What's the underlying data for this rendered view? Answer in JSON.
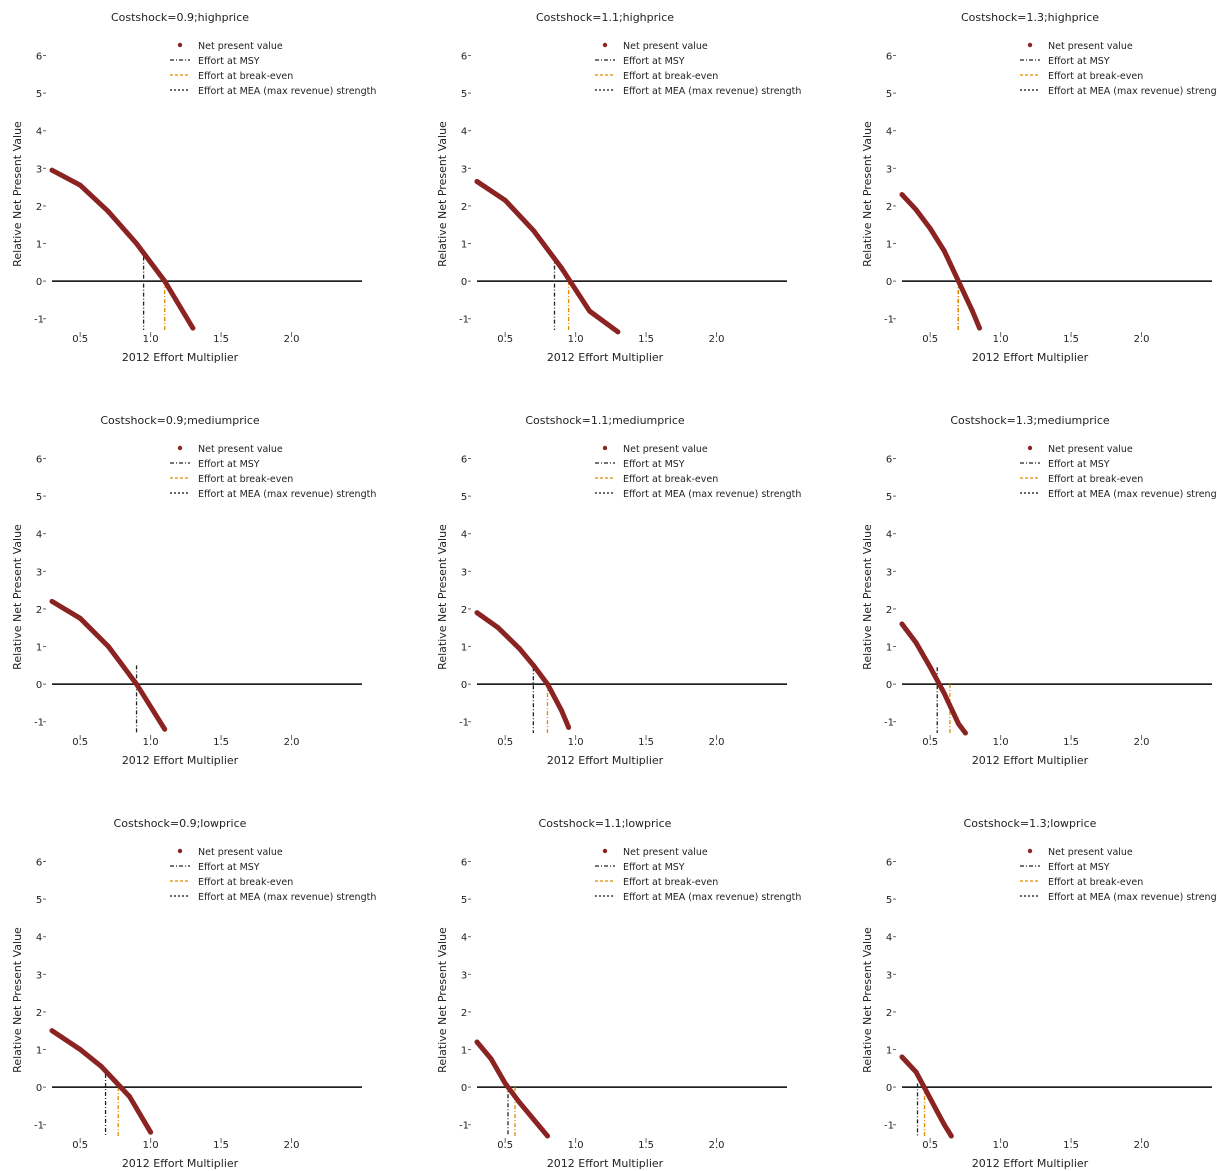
{
  "colors": {
    "npv": "#8b2323",
    "msy": "#222222",
    "breakeven": "#e08a00",
    "max_revenue": "#111111",
    "zero_line": "#000000"
  },
  "legend_labels": [
    "Net present value",
    "Effort at MSY",
    "Effort at break-even",
    "Effort at MEA (max revenue) strength"
  ],
  "chart_data": [
    {
      "type": "line",
      "title": "Costshock=0.9;highprice",
      "xlabel": "2012 Effort Multiplier",
      "ylabel": "Relative Net Present Value",
      "xlim": [
        0.3,
        2.5
      ],
      "ylim": [
        -1.3,
        6.2
      ],
      "x_ticks": [
        0.5,
        1.0,
        1.5,
        2.0
      ],
      "x_tick_labels": [
        "0.5",
        "1.0",
        "1.5",
        "2.0"
      ],
      "y_ticks": [
        -1,
        0,
        1,
        2,
        3,
        4,
        5,
        6
      ],
      "y_tick_labels": [
        "-1",
        "0",
        "1",
        "2",
        "3",
        "4",
        "5",
        "6"
      ],
      "series": [
        {
          "x": [
            0.3,
            0.5,
            0.7,
            0.9,
            1.1,
            1.3
          ],
          "values": [
            2.95,
            2.55,
            1.85,
            1.0,
            0.0,
            -1.25
          ]
        }
      ],
      "vlines": [
        {
          "kind": "msy",
          "x": 0.95,
          "y_top": 0.65
        },
        {
          "kind": "breakeven",
          "x": 1.1,
          "y_top": 0.0
        }
      ]
    },
    {
      "type": "line",
      "title": "Costshock=1.1;highprice",
      "xlabel": "2012 Effort Multiplier",
      "ylabel": "Relative Net Present Value",
      "xlim": [
        0.3,
        2.5
      ],
      "ylim": [
        -1.3,
        6.2
      ],
      "x_ticks": [
        0.5,
        1.0,
        1.5,
        2.0
      ],
      "x_tick_labels": [
        "0.5",
        "1.0",
        "1.5",
        "2.0"
      ],
      "y_ticks": [
        -1,
        0,
        1,
        2,
        3,
        4,
        5,
        6
      ],
      "y_tick_labels": [
        "-1",
        "0",
        "1",
        "2",
        "3",
        "4",
        "5",
        "6"
      ],
      "series": [
        {
          "x": [
            0.3,
            0.5,
            0.7,
            0.9,
            1.1,
            1.3
          ],
          "values": [
            2.65,
            2.15,
            1.35,
            0.35,
            -0.8,
            -1.35
          ]
        }
      ],
      "vlines": [
        {
          "kind": "msy",
          "x": 0.85,
          "y_top": 0.65
        },
        {
          "kind": "breakeven",
          "x": 0.95,
          "y_top": 0.0
        }
      ]
    },
    {
      "type": "line",
      "title": "Costshock=1.3;highprice",
      "xlabel": "2012 Effort Multiplier",
      "ylabel": "Relative Net Present Value",
      "xlim": [
        0.3,
        2.5
      ],
      "ylim": [
        -1.3,
        6.2
      ],
      "x_ticks": [
        0.5,
        1.0,
        1.5,
        2.0
      ],
      "x_tick_labels": [
        "0.5",
        "1.0",
        "1.5",
        "2.0"
      ],
      "y_ticks": [
        -1,
        0,
        1,
        2,
        3,
        4,
        5,
        6
      ],
      "y_tick_labels": [
        "-1",
        "0",
        "1",
        "2",
        "3",
        "4",
        "5",
        "6"
      ],
      "series": [
        {
          "x": [
            0.3,
            0.4,
            0.5,
            0.6,
            0.7,
            0.8,
            0.85
          ],
          "values": [
            2.3,
            1.9,
            1.4,
            0.8,
            0.0,
            -0.8,
            -1.25
          ]
        }
      ],
      "vlines": [
        {
          "kind": "msy",
          "x": 0.7,
          "y_top": 0.0
        },
        {
          "kind": "breakeven",
          "x": 0.7,
          "y_top": 0.0
        }
      ]
    },
    {
      "type": "line",
      "title": "Costshock=0.9;mediumprice",
      "xlabel": "2012 Effort Multiplier",
      "ylabel": "Relative Net Present Value",
      "xlim": [
        0.3,
        2.5
      ],
      "ylim": [
        -1.3,
        6.2
      ],
      "x_ticks": [
        0.5,
        1.0,
        1.5,
        2.0
      ],
      "x_tick_labels": [
        "0.5",
        "1.0",
        "1.5",
        "2.0"
      ],
      "y_ticks": [
        -1,
        0,
        1,
        2,
        3,
        4,
        5,
        6
      ],
      "y_tick_labels": [
        "-1",
        "0",
        "1",
        "2",
        "3",
        "4",
        "5",
        "6"
      ],
      "series": [
        {
          "x": [
            0.3,
            0.5,
            0.7,
            0.9,
            1.1
          ],
          "values": [
            2.2,
            1.75,
            1.0,
            0.0,
            -1.2
          ]
        }
      ],
      "vlines": [
        {
          "kind": "msy",
          "x": 0.9,
          "y_top": 0.5
        }
      ]
    },
    {
      "type": "line",
      "title": "Costshock=1.1;mediumprice",
      "xlabel": "2012 Effort Multiplier",
      "ylabel": "Relative Net Present Value",
      "xlim": [
        0.3,
        2.5
      ],
      "ylim": [
        -1.3,
        6.2
      ],
      "x_ticks": [
        0.5,
        1.0,
        1.5,
        2.0
      ],
      "x_tick_labels": [
        "0.5",
        "1.0",
        "1.5",
        "2.0"
      ],
      "y_ticks": [
        -1,
        0,
        1,
        2,
        3,
        4,
        5,
        6
      ],
      "y_tick_labels": [
        "-1",
        "0",
        "1",
        "2",
        "3",
        "4",
        "5",
        "6"
      ],
      "series": [
        {
          "x": [
            0.3,
            0.45,
            0.6,
            0.7,
            0.8,
            0.9,
            0.95
          ],
          "values": [
            1.9,
            1.5,
            0.95,
            0.5,
            0.0,
            -0.7,
            -1.15
          ]
        }
      ],
      "vlines": [
        {
          "kind": "msy",
          "x": 0.7,
          "y_top": 0.45
        },
        {
          "kind": "breakeven",
          "x": 0.8,
          "y_top": 0.0
        }
      ]
    },
    {
      "type": "line",
      "title": "Costshock=1.3;mediumprice",
      "xlabel": "2012 Effort Multiplier",
      "ylabel": "Relative Net Present Value",
      "xlim": [
        0.3,
        2.5
      ],
      "ylim": [
        -1.3,
        6.2
      ],
      "x_ticks": [
        0.5,
        1.0,
        1.5,
        2.0
      ],
      "x_tick_labels": [
        "0.5",
        "1.0",
        "1.5",
        "2.0"
      ],
      "y_ticks": [
        -1,
        0,
        1,
        2,
        3,
        4,
        5,
        6
      ],
      "y_tick_labels": [
        "-1",
        "0",
        "1",
        "2",
        "3",
        "4",
        "5",
        "6"
      ],
      "series": [
        {
          "x": [
            0.3,
            0.4,
            0.5,
            0.6,
            0.7,
            0.75
          ],
          "values": [
            1.6,
            1.1,
            0.45,
            -0.25,
            -1.05,
            -1.3
          ]
        }
      ],
      "vlines": [
        {
          "kind": "msy",
          "x": 0.55,
          "y_top": 0.45
        },
        {
          "kind": "breakeven",
          "x": 0.64,
          "y_top": 0.0
        }
      ]
    },
    {
      "type": "line",
      "title": "Costshock=0.9;lowprice",
      "xlabel": "2012 Effort Multiplier",
      "ylabel": "Relative Net Present Value",
      "xlim": [
        0.3,
        2.5
      ],
      "ylim": [
        -1.3,
        6.2
      ],
      "x_ticks": [
        0.5,
        1.0,
        1.5,
        2.0
      ],
      "x_tick_labels": [
        "0.5",
        "1.0",
        "1.5",
        "2.0"
      ],
      "y_ticks": [
        -1,
        0,
        1,
        2,
        3,
        4,
        5,
        6
      ],
      "y_tick_labels": [
        "-1",
        "0",
        "1",
        "2",
        "3",
        "4",
        "5",
        "6"
      ],
      "series": [
        {
          "x": [
            0.3,
            0.5,
            0.65,
            0.75,
            0.85,
            1.0
          ],
          "values": [
            1.5,
            1.0,
            0.55,
            0.15,
            -0.25,
            -1.2
          ]
        }
      ],
      "vlines": [
        {
          "kind": "msy",
          "x": 0.68,
          "y_top": 0.35
        },
        {
          "kind": "breakeven",
          "x": 0.77,
          "y_top": 0.0
        }
      ]
    },
    {
      "type": "line",
      "title": "Costshock=1.1;lowprice",
      "xlabel": "2012 Effort Multiplier",
      "ylabel": "Relative Net Present Value",
      "xlim": [
        0.3,
        2.5
      ],
      "ylim": [
        -1.3,
        6.2
      ],
      "x_ticks": [
        0.5,
        1.0,
        1.5,
        2.0
      ],
      "x_tick_labels": [
        "0.5",
        "1.0",
        "1.5",
        "2.0"
      ],
      "y_ticks": [
        -1,
        0,
        1,
        2,
        3,
        4,
        5,
        6
      ],
      "y_tick_labels": [
        "-1",
        "0",
        "1",
        "2",
        "3",
        "4",
        "5",
        "6"
      ],
      "series": [
        {
          "x": [
            0.3,
            0.4,
            0.5,
            0.6,
            0.7,
            0.8
          ],
          "values": [
            1.2,
            0.75,
            0.1,
            -0.4,
            -0.85,
            -1.3
          ]
        }
      ],
      "vlines": [
        {
          "kind": "msy",
          "x": 0.52,
          "y_top": 0.05
        },
        {
          "kind": "breakeven",
          "x": 0.57,
          "y_top": 0.0
        }
      ]
    },
    {
      "type": "line",
      "title": "Costshock=1.3;lowprice",
      "xlabel": "2012 Effort Multiplier",
      "ylabel": "Relative Net Present Value",
      "xlim": [
        0.3,
        2.5
      ],
      "ylim": [
        -1.3,
        6.2
      ],
      "x_ticks": [
        0.5,
        1.0,
        1.5,
        2.0
      ],
      "x_tick_labels": [
        "0.5",
        "1.0",
        "1.5",
        "2.0"
      ],
      "y_ticks": [
        -1,
        0,
        1,
        2,
        3,
        4,
        5,
        6
      ],
      "y_tick_labels": [
        "-1",
        "0",
        "1",
        "2",
        "3",
        "4",
        "5",
        "6"
      ],
      "series": [
        {
          "x": [
            0.3,
            0.4,
            0.5,
            0.55,
            0.6,
            0.65
          ],
          "values": [
            0.8,
            0.4,
            -0.3,
            -0.65,
            -1.0,
            -1.3
          ]
        }
      ],
      "vlines": [
        {
          "kind": "msy",
          "x": 0.41,
          "y_top": 0.1
        },
        {
          "kind": "breakeven",
          "x": 0.46,
          "y_top": 0.0
        }
      ]
    }
  ]
}
